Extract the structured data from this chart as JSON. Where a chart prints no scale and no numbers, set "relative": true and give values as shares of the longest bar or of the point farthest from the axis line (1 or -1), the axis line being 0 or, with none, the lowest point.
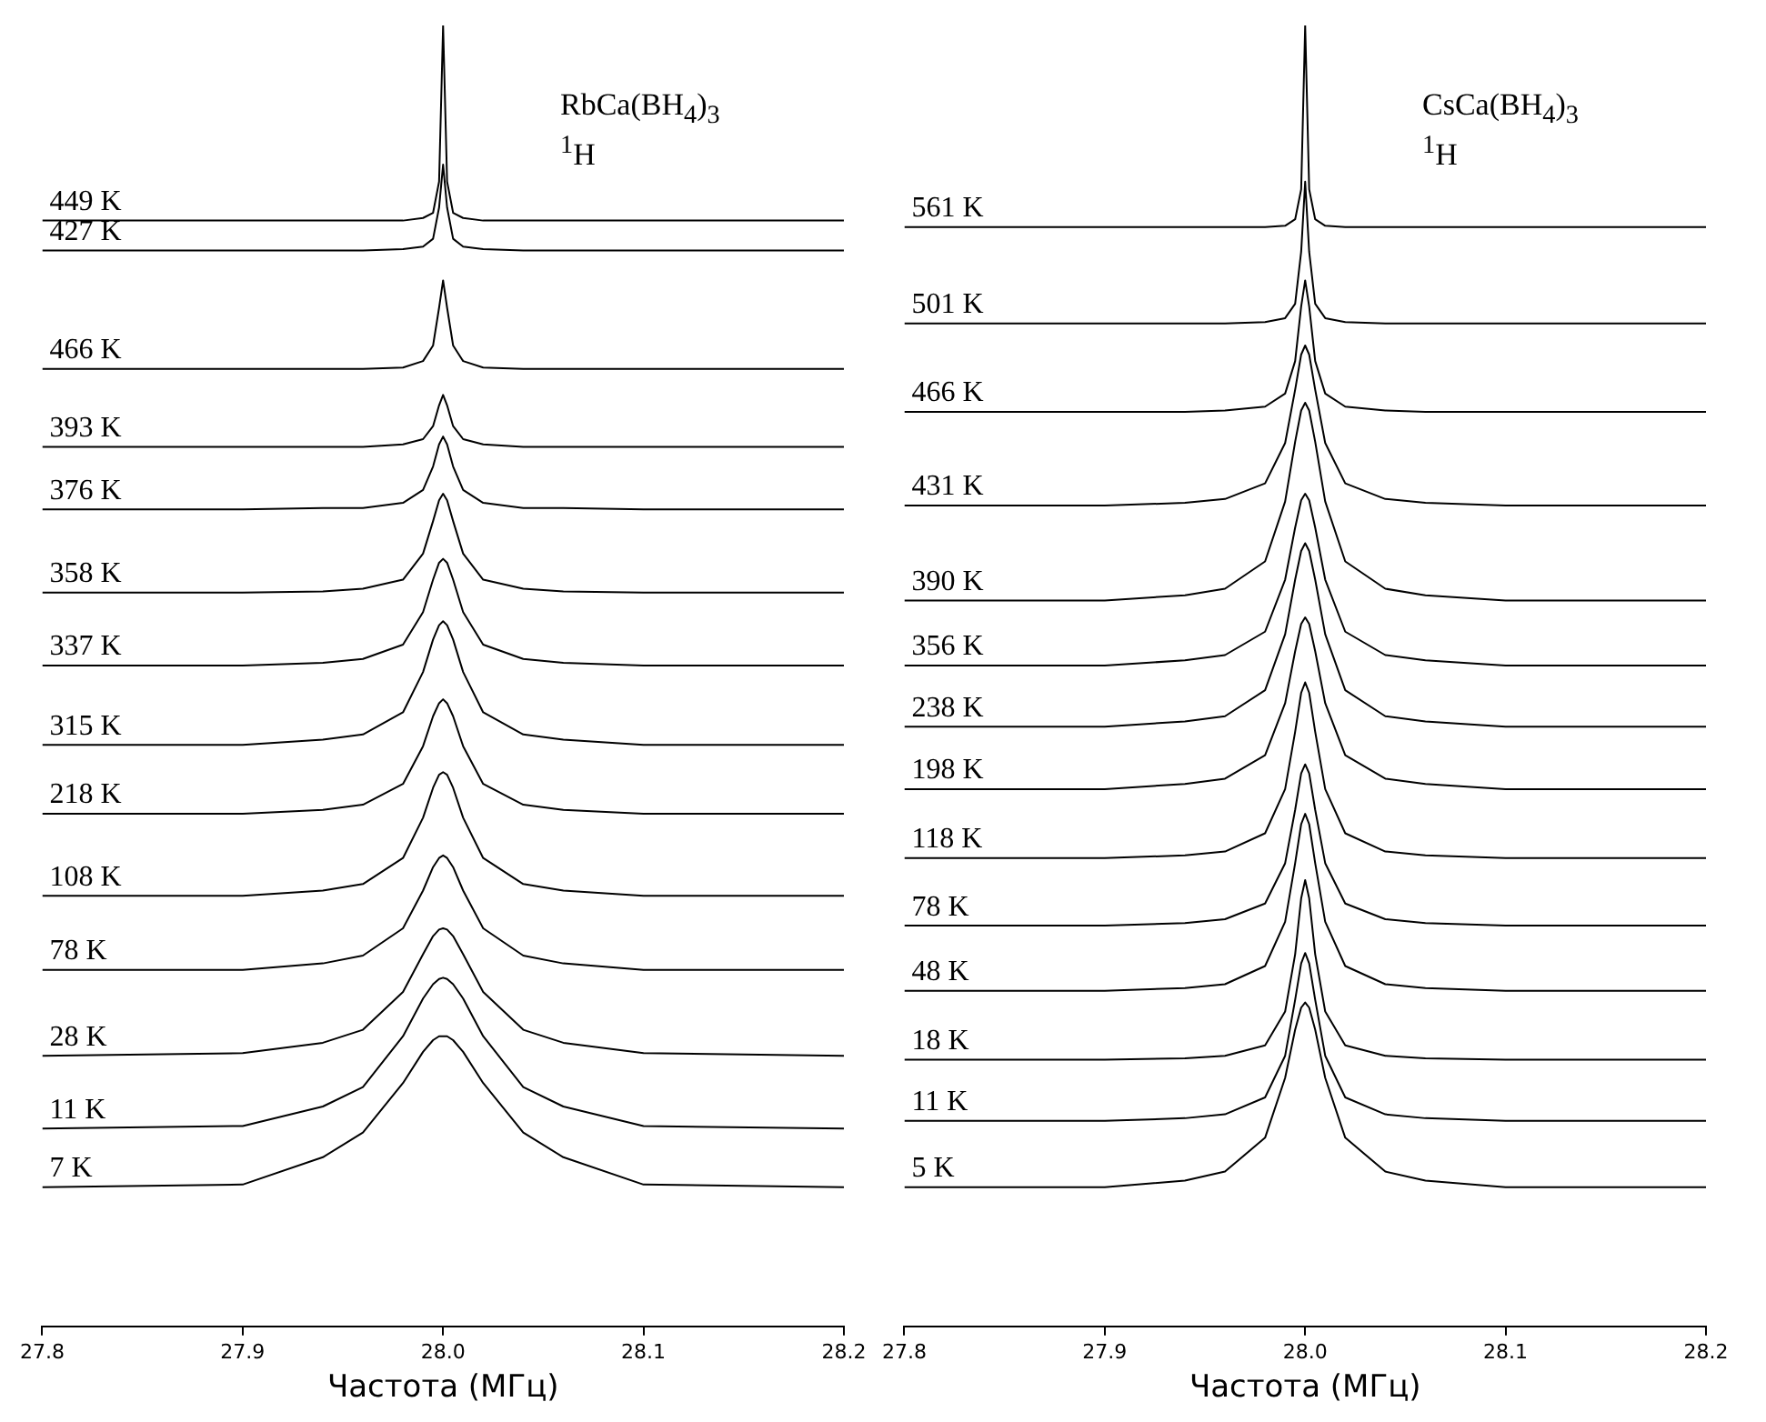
{
  "chart_data": [
    {
      "type": "line",
      "relative": true,
      "legend": false,
      "grid": false,
      "marker": "none",
      "xlabel": "Частота (МГц)",
      "annotations": [
        "RbCa(BH$_{4}$)$_{3}$",
        "$^{1}$H"
      ],
      "xlim": [
        27.8,
        28.2
      ],
      "xticks": [
        27.8,
        27.9,
        {
          "value": 28,
          "label": "28.0"
        },
        28.1,
        28.2
      ],
      "x": [
        27.8,
        27.9,
        27.94,
        27.96,
        27.98,
        27.99,
        27.995,
        27.998,
        28.0,
        28.002,
        28.005,
        28.01,
        28.02,
        28.04,
        28.06,
        28.1,
        28.2
      ],
      "series": [
        {
          "name": "449 K",
          "color": "#000000",
          "values": [
            0.85,
            0.85,
            0.85,
            0.85,
            0.85,
            0.852,
            0.856,
            0.88,
            1.0,
            0.88,
            0.856,
            0.852,
            0.85,
            0.85,
            0.85,
            0.85,
            0.85
          ]
        },
        {
          "name": "427 K",
          "color": "#000000",
          "values": [
            0.827,
            0.827,
            0.827,
            0.827,
            0.828,
            0.83,
            0.836,
            0.86,
            0.893,
            0.86,
            0.836,
            0.83,
            0.828,
            0.827,
            0.827,
            0.827,
            0.827
          ]
        },
        {
          "name": "466 K",
          "color": "#000000",
          "values": [
            0.736,
            0.736,
            0.736,
            0.736,
            0.737,
            0.742,
            0.754,
            0.783,
            0.804,
            0.783,
            0.754,
            0.742,
            0.737,
            0.736,
            0.736,
            0.736,
            0.736
          ]
        },
        {
          "name": "393 K",
          "color": "#000000",
          "values": [
            0.676,
            0.676,
            0.676,
            0.676,
            0.678,
            0.682,
            0.692,
            0.708,
            0.716,
            0.708,
            0.692,
            0.682,
            0.678,
            0.676,
            0.676,
            0.676,
            0.676
          ]
        },
        {
          "name": "376 K",
          "color": "#000000",
          "values": [
            0.628,
            0.628,
            0.629,
            0.629,
            0.633,
            0.643,
            0.661,
            0.678,
            0.684,
            0.678,
            0.661,
            0.643,
            0.633,
            0.629,
            0.629,
            0.628,
            0.628
          ]
        },
        {
          "name": "358 K",
          "color": "#000000",
          "values": [
            0.564,
            0.564,
            0.565,
            0.567,
            0.574,
            0.594,
            0.619,
            0.635,
            0.64,
            0.635,
            0.619,
            0.594,
            0.574,
            0.567,
            0.565,
            0.564,
            0.564
          ]
        },
        {
          "name": "337 K",
          "color": "#000000",
          "values": [
            0.508,
            0.508,
            0.51,
            0.513,
            0.524,
            0.549,
            0.574,
            0.587,
            0.59,
            0.587,
            0.574,
            0.549,
            0.524,
            0.513,
            0.51,
            0.508,
            0.508
          ]
        },
        {
          "name": "315 K",
          "color": "#000000",
          "values": [
            0.447,
            0.447,
            0.451,
            0.455,
            0.472,
            0.503,
            0.528,
            0.539,
            0.542,
            0.539,
            0.528,
            0.503,
            0.472,
            0.455,
            0.451,
            0.447,
            0.447
          ]
        },
        {
          "name": "218 K",
          "color": "#000000",
          "values": [
            0.394,
            0.394,
            0.397,
            0.401,
            0.417,
            0.446,
            0.469,
            0.479,
            0.482,
            0.479,
            0.469,
            0.446,
            0.417,
            0.401,
            0.397,
            0.394,
            0.394
          ]
        },
        {
          "name": "108 K",
          "color": "#000000",
          "values": [
            0.331,
            0.331,
            0.335,
            0.34,
            0.36,
            0.391,
            0.414,
            0.424,
            0.426,
            0.424,
            0.414,
            0.391,
            0.36,
            0.34,
            0.335,
            0.331,
            0.331
          ]
        },
        {
          "name": "78 K",
          "color": "#000000",
          "values": [
            0.274,
            0.274,
            0.279,
            0.285,
            0.306,
            0.335,
            0.353,
            0.36,
            0.362,
            0.36,
            0.353,
            0.335,
            0.306,
            0.285,
            0.279,
            0.274,
            0.274
          ]
        },
        {
          "name": "28 K",
          "color": "#000000",
          "values": [
            0.208,
            0.21,
            0.218,
            0.228,
            0.257,
            0.286,
            0.3,
            0.305,
            0.306,
            0.305,
            0.3,
            0.286,
            0.257,
            0.228,
            0.218,
            0.21,
            0.208
          ]
        },
        {
          "name": "11 K",
          "color": "#000000",
          "values": [
            0.152,
            0.154,
            0.169,
            0.184,
            0.223,
            0.252,
            0.263,
            0.267,
            0.268,
            0.267,
            0.263,
            0.252,
            0.223,
            0.184,
            0.169,
            0.154,
            0.152
          ]
        },
        {
          "name": "7 K",
          "color": "#000000",
          "values": [
            0.107,
            0.109,
            0.13,
            0.149,
            0.187,
            0.211,
            0.22,
            0.223,
            0.223,
            0.223,
            0.22,
            0.211,
            0.187,
            0.149,
            0.13,
            0.109,
            0.107
          ]
        }
      ]
    },
    {
      "type": "line",
      "relative": true,
      "legend": false,
      "grid": false,
      "marker": "none",
      "xlabel": "Частота (МГц)",
      "annotations": [
        "CsCa(BH$_{4}$)$_{3}$",
        "$^{1}$H"
      ],
      "xlim": [
        27.8,
        28.2
      ],
      "xticks": [
        27.8,
        27.9,
        {
          "value": 28,
          "label": "28.0"
        },
        28.1,
        28.2
      ],
      "x": [
        27.8,
        27.9,
        27.94,
        27.96,
        27.98,
        27.99,
        27.995,
        27.998,
        28.0,
        28.002,
        28.005,
        28.01,
        28.02,
        28.04,
        28.06,
        28.1,
        28.2
      ],
      "series": [
        {
          "name": "561 K",
          "color": "#000000",
          "values": [
            0.845,
            0.845,
            0.845,
            0.845,
            0.845,
            0.846,
            0.851,
            0.874,
            1.0,
            0.874,
            0.851,
            0.846,
            0.845,
            0.845,
            0.845,
            0.845,
            0.845
          ]
        },
        {
          "name": "501 K",
          "color": "#000000",
          "values": [
            0.771,
            0.771,
            0.771,
            0.771,
            0.772,
            0.775,
            0.786,
            0.826,
            0.88,
            0.826,
            0.786,
            0.775,
            0.772,
            0.771,
            0.771,
            0.771,
            0.771
          ]
        },
        {
          "name": "466 K",
          "color": "#000000",
          "values": [
            0.703,
            0.703,
            0.703,
            0.704,
            0.707,
            0.717,
            0.742,
            0.784,
            0.804,
            0.784,
            0.742,
            0.717,
            0.707,
            0.704,
            0.703,
            0.703,
            0.703
          ]
        },
        {
          "name": "431 K",
          "color": "#000000",
          "values": [
            0.631,
            0.631,
            0.633,
            0.636,
            0.648,
            0.679,
            0.72,
            0.747,
            0.754,
            0.747,
            0.72,
            0.679,
            0.648,
            0.636,
            0.633,
            0.631,
            0.631
          ]
        },
        {
          "name": "390 K",
          "color": "#000000",
          "values": [
            0.558,
            0.558,
            0.562,
            0.567,
            0.588,
            0.634,
            0.68,
            0.704,
            0.71,
            0.704,
            0.68,
            0.634,
            0.588,
            0.567,
            0.562,
            0.558,
            0.558
          ]
        },
        {
          "name": "356 K",
          "color": "#000000",
          "values": [
            0.508,
            0.508,
            0.512,
            0.516,
            0.534,
            0.574,
            0.614,
            0.635,
            0.64,
            0.635,
            0.614,
            0.574,
            0.534,
            0.516,
            0.512,
            0.508,
            0.508
          ]
        },
        {
          "name": "238 K",
          "color": "#000000",
          "values": [
            0.461,
            0.461,
            0.465,
            0.469,
            0.489,
            0.532,
            0.574,
            0.596,
            0.602,
            0.596,
            0.574,
            0.532,
            0.489,
            0.469,
            0.465,
            0.461,
            0.461
          ]
        },
        {
          "name": "198 K",
          "color": "#000000",
          "values": [
            0.413,
            0.413,
            0.417,
            0.421,
            0.439,
            0.479,
            0.519,
            0.54,
            0.545,
            0.54,
            0.519,
            0.479,
            0.439,
            0.421,
            0.417,
            0.413,
            0.413
          ]
        },
        {
          "name": "118 K",
          "color": "#000000",
          "values": [
            0.36,
            0.36,
            0.362,
            0.365,
            0.379,
            0.413,
            0.457,
            0.487,
            0.495,
            0.487,
            0.457,
            0.413,
            0.379,
            0.365,
            0.362,
            0.36,
            0.36
          ]
        },
        {
          "name": "78 K",
          "color": "#000000",
          "values": [
            0.308,
            0.308,
            0.31,
            0.313,
            0.325,
            0.356,
            0.397,
            0.425,
            0.432,
            0.425,
            0.397,
            0.356,
            0.325,
            0.313,
            0.31,
            0.308,
            0.308
          ]
        },
        {
          "name": "48 K",
          "color": "#000000",
          "values": [
            0.258,
            0.258,
            0.26,
            0.263,
            0.277,
            0.311,
            0.356,
            0.386,
            0.394,
            0.386,
            0.356,
            0.311,
            0.277,
            0.263,
            0.26,
            0.258,
            0.258
          ]
        },
        {
          "name": "18 K",
          "color": "#000000",
          "values": [
            0.205,
            0.205,
            0.206,
            0.208,
            0.216,
            0.242,
            0.286,
            0.329,
            0.343,
            0.329,
            0.286,
            0.242,
            0.216,
            0.208,
            0.206,
            0.205,
            0.205
          ]
        },
        {
          "name": "11 K",
          "color": "#000000",
          "values": [
            0.158,
            0.158,
            0.16,
            0.163,
            0.176,
            0.208,
            0.251,
            0.279,
            0.287,
            0.279,
            0.251,
            0.208,
            0.176,
            0.163,
            0.16,
            0.158,
            0.158
          ]
        },
        {
          "name": "5 K",
          "color": "#000000",
          "values": [
            0.107,
            0.107,
            0.112,
            0.119,
            0.145,
            0.191,
            0.228,
            0.245,
            0.249,
            0.245,
            0.228,
            0.191,
            0.145,
            0.119,
            0.112,
            0.107,
            0.107
          ]
        }
      ]
    }
  ]
}
